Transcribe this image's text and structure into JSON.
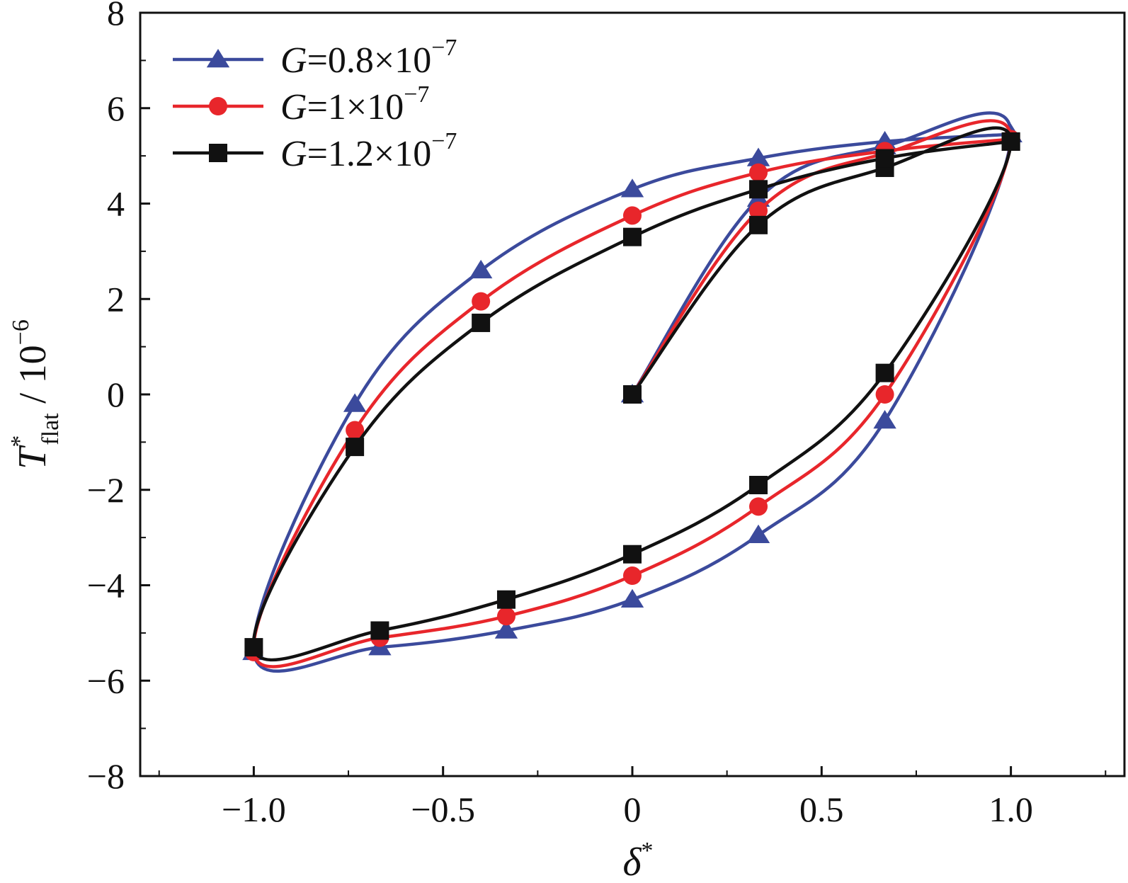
{
  "chart_data": {
    "type": "line",
    "title": "",
    "xlabel": {
      "symbol": "δ",
      "sup": "*"
    },
    "ylabel": {
      "symbol": "T",
      "sup": "*",
      "sub": "flat",
      "unit": " / 10",
      "unit_exp": "−6"
    },
    "xlim": [
      -1.3,
      1.3
    ],
    "ylim": [
      -8,
      8
    ],
    "x_ticks": [
      -1.0,
      -0.5,
      0,
      0.5,
      1.0
    ],
    "x_tick_labels": [
      "−1.0",
      "−0.5",
      "0",
      "0.5",
      "1.0"
    ],
    "y_ticks": [
      -8,
      -6,
      -4,
      -2,
      0,
      2,
      4,
      6,
      8
    ],
    "y_tick_labels": [
      "−8",
      "−6",
      "−4",
      "−2",
      "0",
      "2",
      "4",
      "6",
      "8"
    ],
    "grid": false,
    "legend_position": "top-left",
    "series": [
      {
        "name": "G=0.8×10−7",
        "legend": {
          "var": "G",
          "text": "=0.8×10",
          "exp": "−7"
        },
        "color": "#3b4a9c",
        "marker": "triangle",
        "x": [
          0,
          0.333,
          0.667,
          1.0,
          0.667,
          0.333,
          0,
          -0.333,
          -0.667,
          -1.0,
          -0.733,
          -0.4,
          0,
          0.333,
          0.667,
          1.0
        ],
        "y": [
          0,
          4.1,
          5.2,
          5.45,
          -0.55,
          -2.95,
          -4.3,
          -4.95,
          -5.3,
          -5.4,
          -0.2,
          2.6,
          4.3,
          4.95,
          5.3,
          5.45
        ]
      },
      {
        "name": "G=1×10−7",
        "legend": {
          "var": "G",
          "text": "=1×10",
          "exp": "−7"
        },
        "color": "#e8262b",
        "marker": "circle",
        "x": [
          0,
          0.333,
          0.667,
          1.0,
          0.667,
          0.333,
          0,
          -0.333,
          -0.667,
          -1.0,
          -0.733,
          -0.4,
          0,
          0.333,
          0.667,
          1.0
        ],
        "y": [
          0,
          3.85,
          5.05,
          5.35,
          0.0,
          -2.35,
          -3.8,
          -4.65,
          -5.1,
          -5.4,
          -0.75,
          1.95,
          3.75,
          4.65,
          5.1,
          5.35
        ]
      },
      {
        "name": "G=1.2×10−7",
        "legend": {
          "var": "G",
          "text": "=1.2×10",
          "exp": "−7"
        },
        "color": "#111111",
        "marker": "square",
        "x": [
          0,
          0.333,
          0.667,
          1.0,
          0.667,
          0.333,
          0,
          -0.333,
          -0.667,
          -1.0,
          -0.733,
          -0.4,
          0,
          0.333,
          0.667,
          1.0
        ],
        "y": [
          0,
          3.55,
          4.75,
          5.3,
          0.45,
          -1.9,
          -3.35,
          -4.3,
          -4.95,
          -5.3,
          -1.1,
          1.5,
          3.3,
          4.3,
          4.95,
          5.3
        ]
      }
    ]
  }
}
